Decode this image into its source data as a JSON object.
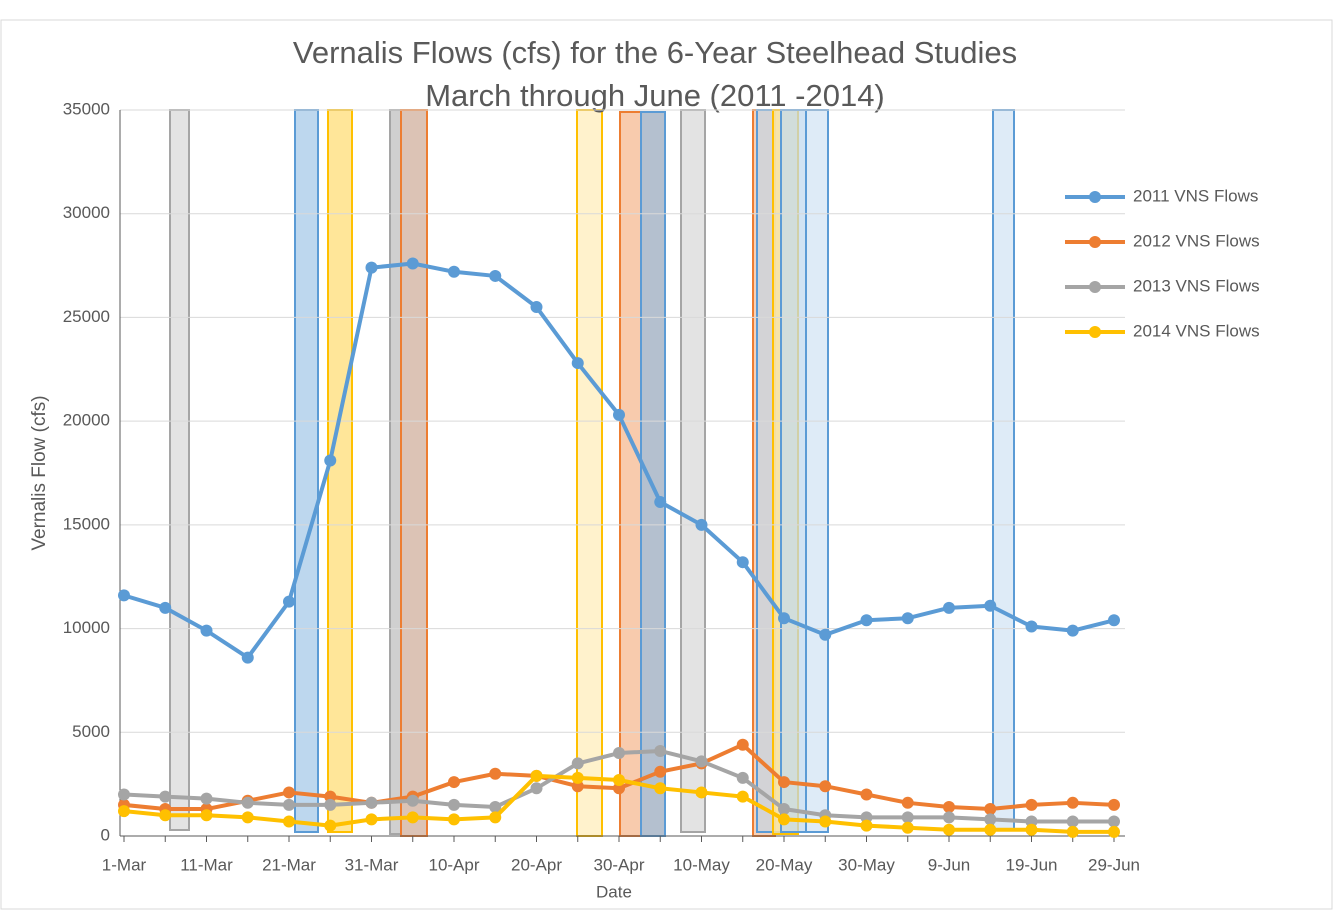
{
  "chart_data": {
    "type": "line",
    "title": "Vernalis Flows (cfs) for the 6-Year Steelhead Studies",
    "subtitle": "March through June (2011 -2014)",
    "xlabel": "Date",
    "ylabel": "Vernalis Flow (cfs)",
    "categories": [
      "1-Mar",
      null,
      "11-Mar",
      null,
      "21-Mar",
      null,
      "31-Mar",
      null,
      "10-Apr",
      null,
      "20-Apr",
      null,
      "30-Apr",
      null,
      "10-May",
      null,
      "20-May",
      null,
      "30-May",
      null,
      "9-Jun",
      null,
      "19-Jun",
      null,
      "29-Jun"
    ],
    "series": [
      {
        "name": "2011 VNS Flows",
        "color": "#5b9bd5",
        "values": [
          11600,
          11000,
          9900,
          8600,
          11300,
          18100,
          27400,
          27600,
          27200,
          27000,
          25500,
          22800,
          20300,
          16100,
          15000,
          13200,
          10500,
          9700,
          10400,
          10500,
          11000,
          11100,
          10100,
          9900,
          10400
        ]
      },
      {
        "name": "2012 VNS Flows",
        "color": "#ed7d31",
        "values": [
          1500,
          1300,
          1300,
          1700,
          2100,
          1900,
          1600,
          1900,
          2600,
          3000,
          2900,
          2400,
          2300,
          3100,
          3500,
          4400,
          2600,
          2400,
          2000,
          1600,
          1400,
          1300,
          1500,
          1600,
          1500
        ]
      },
      {
        "name": "2013 VNS Flows",
        "color": "#a5a5a5",
        "values": [
          2000,
          1900,
          1800,
          1600,
          1500,
          1500,
          1600,
          1700,
          1500,
          1400,
          2300,
          3500,
          4000,
          4100,
          3600,
          2800,
          1300,
          1000,
          900,
          900,
          900,
          800,
          700,
          700,
          700
        ]
      },
      {
        "name": "2014 VNS Flows",
        "color": "#ffc000",
        "values": [
          1200,
          1000,
          1000,
          900,
          700,
          500,
          800,
          900,
          800,
          900,
          2900,
          2800,
          2700,
          2300,
          2100,
          1900,
          800,
          700,
          500,
          400,
          300,
          300,
          300,
          200,
          200
        ]
      }
    ],
    "ylim": [
      0,
      35000
    ],
    "yticks": [
      0,
      5000,
      10000,
      15000,
      20000,
      25000,
      30000,
      35000
    ],
    "grid": true,
    "legend": "right"
  }
}
